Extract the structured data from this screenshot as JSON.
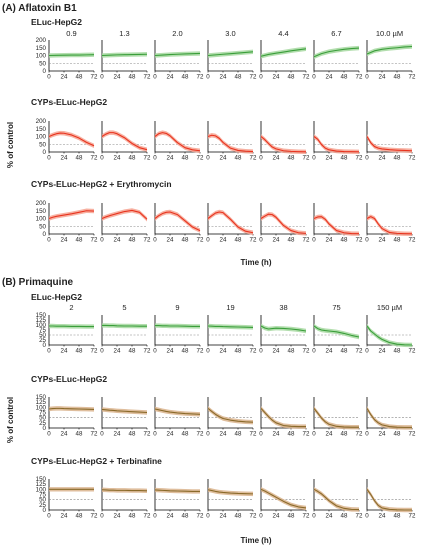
{
  "panel_a": {
    "title": "(A) Aflatoxin B1",
    "concentrations": [
      "0.9",
      "1.3",
      "2.0",
      "3.0",
      "4.4",
      "6.7",
      "10.0 µM"
    ],
    "rows": [
      "ELuc-HepG2",
      "CYPs-ELuc-HepG2",
      "CYPs-ELuc-HepG2 + Erythromycin"
    ],
    "ylabel": "% of control",
    "xlabel": "Time (h)"
  },
  "panel_b": {
    "title": "(B) Primaquine",
    "concentrations": [
      "2",
      "5",
      "9",
      "19",
      "38",
      "75",
      "150 µM"
    ],
    "rows": [
      "ELuc-HepG2",
      "CYPs-ELuc-HepG2",
      "CYPs-ELuc-HepG2 + Terbinafine"
    ],
    "ylabel": "% of control",
    "xlabel": "Time (h)"
  },
  "colors": {
    "eluc_line": "#3a9e3a",
    "eluc_band": "#a6d8a0",
    "cyp_a_line": "#e8331e",
    "cyp_a_band": "#f6a392",
    "cyp_b_line": "#8a6a2a",
    "cyp_b_band": "#d9b38c",
    "reference_line": "#888888"
  },
  "chart_data": [
    {
      "type": "line",
      "panel": "(A) Aflatoxin B1",
      "row": "ELuc-HepG2",
      "x": [
        0,
        12,
        24,
        36,
        48,
        60,
        72
      ],
      "xlim": [
        0,
        72
      ],
      "ylim": [
        0,
        200
      ],
      "xticks": [
        0,
        24,
        48,
        72
      ],
      "yticks": [
        0,
        50,
        100,
        150,
        200
      ],
      "reference_y": 50,
      "series": [
        {
          "name": "0.9",
          "values": [
            100,
            101,
            102,
            103,
            103,
            104,
            105
          ]
        },
        {
          "name": "1.3",
          "values": [
            100,
            102,
            104,
            105,
            106,
            107,
            108
          ]
        },
        {
          "name": "2.0",
          "values": [
            100,
            103,
            106,
            108,
            110,
            112,
            113
          ]
        },
        {
          "name": "3.0",
          "values": [
            100,
            104,
            108,
            112,
            116,
            120,
            124
          ]
        },
        {
          "name": "4.4",
          "values": [
            95,
            107,
            115,
            122,
            130,
            137,
            143
          ]
        },
        {
          "name": "6.7",
          "values": [
            92,
            112,
            125,
            133,
            140,
            145,
            148
          ]
        },
        {
          "name": "10.0 µM",
          "values": [
            110,
            130,
            140,
            146,
            150,
            155,
            158
          ]
        }
      ]
    },
    {
      "type": "line",
      "panel": "(A) Aflatoxin B1",
      "row": "CYPs-ELuc-HepG2",
      "x": [
        0,
        6,
        12,
        18,
        24,
        36,
        48,
        60,
        72
      ],
      "xlim": [
        0,
        72
      ],
      "ylim": [
        0,
        200
      ],
      "xticks": [
        0,
        24,
        48,
        72
      ],
      "yticks": [
        0,
        50,
        100,
        150,
        200
      ],
      "reference_y": 50,
      "series": [
        {
          "name": "0.9",
          "values": [
            100,
            110,
            118,
            122,
            121,
            110,
            90,
            62,
            40
          ]
        },
        {
          "name": "1.3",
          "values": [
            100,
            115,
            125,
            125,
            118,
            92,
            55,
            28,
            15
          ]
        },
        {
          "name": "2.0",
          "values": [
            100,
            118,
            125,
            120,
            105,
            60,
            28,
            14,
            8
          ]
        },
        {
          "name": "3.0",
          "values": [
            100,
            108,
            104,
            88,
            62,
            25,
            10,
            5,
            3
          ]
        },
        {
          "name": "4.4",
          "values": [
            100,
            80,
            55,
            32,
            20,
            8,
            4,
            2,
            1
          ]
        },
        {
          "name": "6.7",
          "values": [
            100,
            82,
            48,
            25,
            14,
            6,
            3,
            2,
            1
          ]
        },
        {
          "name": "10.0 µM",
          "values": [
            100,
            60,
            35,
            25,
            20,
            15,
            12,
            10,
            8
          ]
        }
      ]
    },
    {
      "type": "line",
      "panel": "(A) Aflatoxin B1",
      "row": "CYPs-ELuc-HepG2 + Erythromycin",
      "x": [
        0,
        6,
        12,
        18,
        24,
        36,
        48,
        60,
        72
      ],
      "xlim": [
        0,
        72
      ],
      "ylim": [
        0,
        200
      ],
      "xticks": [
        0,
        24,
        48,
        72
      ],
      "yticks": [
        0,
        50,
        100,
        150,
        200
      ],
      "reference_y": 50,
      "series": [
        {
          "name": "0.9",
          "values": [
            100,
            108,
            114,
            118,
            122,
            130,
            140,
            150,
            148
          ]
        },
        {
          "name": "1.3",
          "values": [
            100,
            110,
            118,
            125,
            132,
            145,
            152,
            140,
            95
          ]
        },
        {
          "name": "2.0",
          "values": [
            100,
            118,
            132,
            140,
            142,
            125,
            85,
            45,
            22
          ]
        },
        {
          "name": "3.0",
          "values": [
            100,
            118,
            135,
            142,
            138,
            95,
            45,
            18,
            8
          ]
        },
        {
          "name": "4.4",
          "values": [
            100,
            115,
            128,
            125,
            108,
            55,
            22,
            8,
            4
          ]
        },
        {
          "name": "6.7",
          "values": [
            100,
            110,
            112,
            95,
            65,
            22,
            8,
            3,
            2
          ]
        },
        {
          "name": "10.0 µM",
          "values": [
            100,
            112,
            100,
            65,
            35,
            10,
            4,
            2,
            1
          ]
        }
      ]
    },
    {
      "type": "line",
      "panel": "(B) Primaquine",
      "row": "ELuc-HepG2",
      "x": [
        0,
        6,
        12,
        18,
        24,
        36,
        48,
        60,
        72
      ],
      "xlim": [
        0,
        72
      ],
      "ylim": [
        0,
        150
      ],
      "xticks": [
        0,
        24,
        48,
        72
      ],
      "yticks": [
        0,
        25,
        50,
        75,
        100,
        125,
        150
      ],
      "reference_y": 50,
      "series": [
        {
          "name": "2",
          "values": [
            95,
            95,
            94,
            94,
            94,
            93,
            93,
            92,
            92
          ]
        },
        {
          "name": "5",
          "values": [
            98,
            98,
            97,
            97,
            96,
            95,
            95,
            94,
            94
          ]
        },
        {
          "name": "9",
          "values": [
            97,
            97,
            96,
            96,
            95,
            95,
            94,
            93,
            93
          ]
        },
        {
          "name": "19",
          "values": [
            95,
            94,
            93,
            93,
            92,
            91,
            90,
            89,
            88
          ]
        },
        {
          "name": "38",
          "values": [
            95,
            85,
            80,
            82,
            84,
            83,
            80,
            76,
            70
          ]
        },
        {
          "name": "75",
          "values": [
            95,
            82,
            75,
            72,
            70,
            66,
            58,
            48,
            40
          ]
        },
        {
          "name": "150 µM",
          "values": [
            95,
            70,
            55,
            40,
            28,
            12,
            4,
            1,
            0
          ]
        }
      ]
    },
    {
      "type": "line",
      "panel": "(B) Primaquine",
      "row": "CYPs-ELuc-HepG2",
      "x": [
        0,
        6,
        12,
        18,
        24,
        36,
        48,
        60,
        72
      ],
      "xlim": [
        0,
        72
      ],
      "ylim": [
        0,
        150
      ],
      "xticks": [
        0,
        24,
        48,
        72
      ],
      "yticks": [
        0,
        25,
        50,
        75,
        100,
        125,
        150
      ],
      "reference_y": 50,
      "series": [
        {
          "name": "2",
          "values": [
            92,
            94,
            95,
            95,
            94,
            93,
            92,
            91,
            90
          ]
        },
        {
          "name": "5",
          "values": [
            90,
            88,
            86,
            85,
            83,
            81,
            79,
            77,
            75
          ]
        },
        {
          "name": "9",
          "values": [
            92,
            88,
            84,
            80,
            77,
            73,
            70,
            68,
            66
          ]
        },
        {
          "name": "19",
          "values": [
            95,
            80,
            66,
            55,
            46,
            38,
            33,
            30,
            28
          ]
        },
        {
          "name": "38",
          "values": [
            95,
            75,
            55,
            38,
            25,
            12,
            8,
            7,
            7
          ]
        },
        {
          "name": "75",
          "values": [
            95,
            72,
            48,
            30,
            18,
            8,
            5,
            4,
            4
          ]
        },
        {
          "name": "150 µM",
          "values": [
            95,
            65,
            40,
            25,
            15,
            7,
            4,
            3,
            3
          ]
        }
      ]
    },
    {
      "type": "line",
      "panel": "(B) Primaquine",
      "row": "CYPs-ELuc-HepG2 + Terbinafine",
      "x": [
        0,
        6,
        12,
        18,
        24,
        36,
        48,
        60,
        72
      ],
      "xlim": [
        0,
        72
      ],
      "ylim": [
        0,
        150
      ],
      "xticks": [
        0,
        24,
        48,
        72
      ],
      "yticks": [
        0,
        25,
        50,
        75,
        100,
        125,
        150
      ],
      "reference_y": 50,
      "series": [
        {
          "name": "2",
          "values": [
            100,
            100,
            100,
            100,
            100,
            100,
            100,
            100,
            100
          ]
        },
        {
          "name": "5",
          "values": [
            98,
            97,
            96,
            96,
            95,
            95,
            94,
            94,
            93
          ]
        },
        {
          "name": "9",
          "values": [
            97,
            96,
            95,
            94,
            93,
            92,
            91,
            90,
            90
          ]
        },
        {
          "name": "19",
          "values": [
            98,
            94,
            90,
            87,
            85,
            82,
            80,
            79,
            78
          ]
        },
        {
          "name": "38",
          "values": [
            100,
            92,
            82,
            72,
            62,
            42,
            25,
            15,
            10
          ]
        },
        {
          "name": "75",
          "values": [
            100,
            90,
            78,
            62,
            45,
            20,
            8,
            3,
            2
          ]
        },
        {
          "name": "150 µM",
          "values": [
            100,
            75,
            45,
            22,
            10,
            3,
            1,
            0,
            0
          ]
        }
      ]
    }
  ]
}
